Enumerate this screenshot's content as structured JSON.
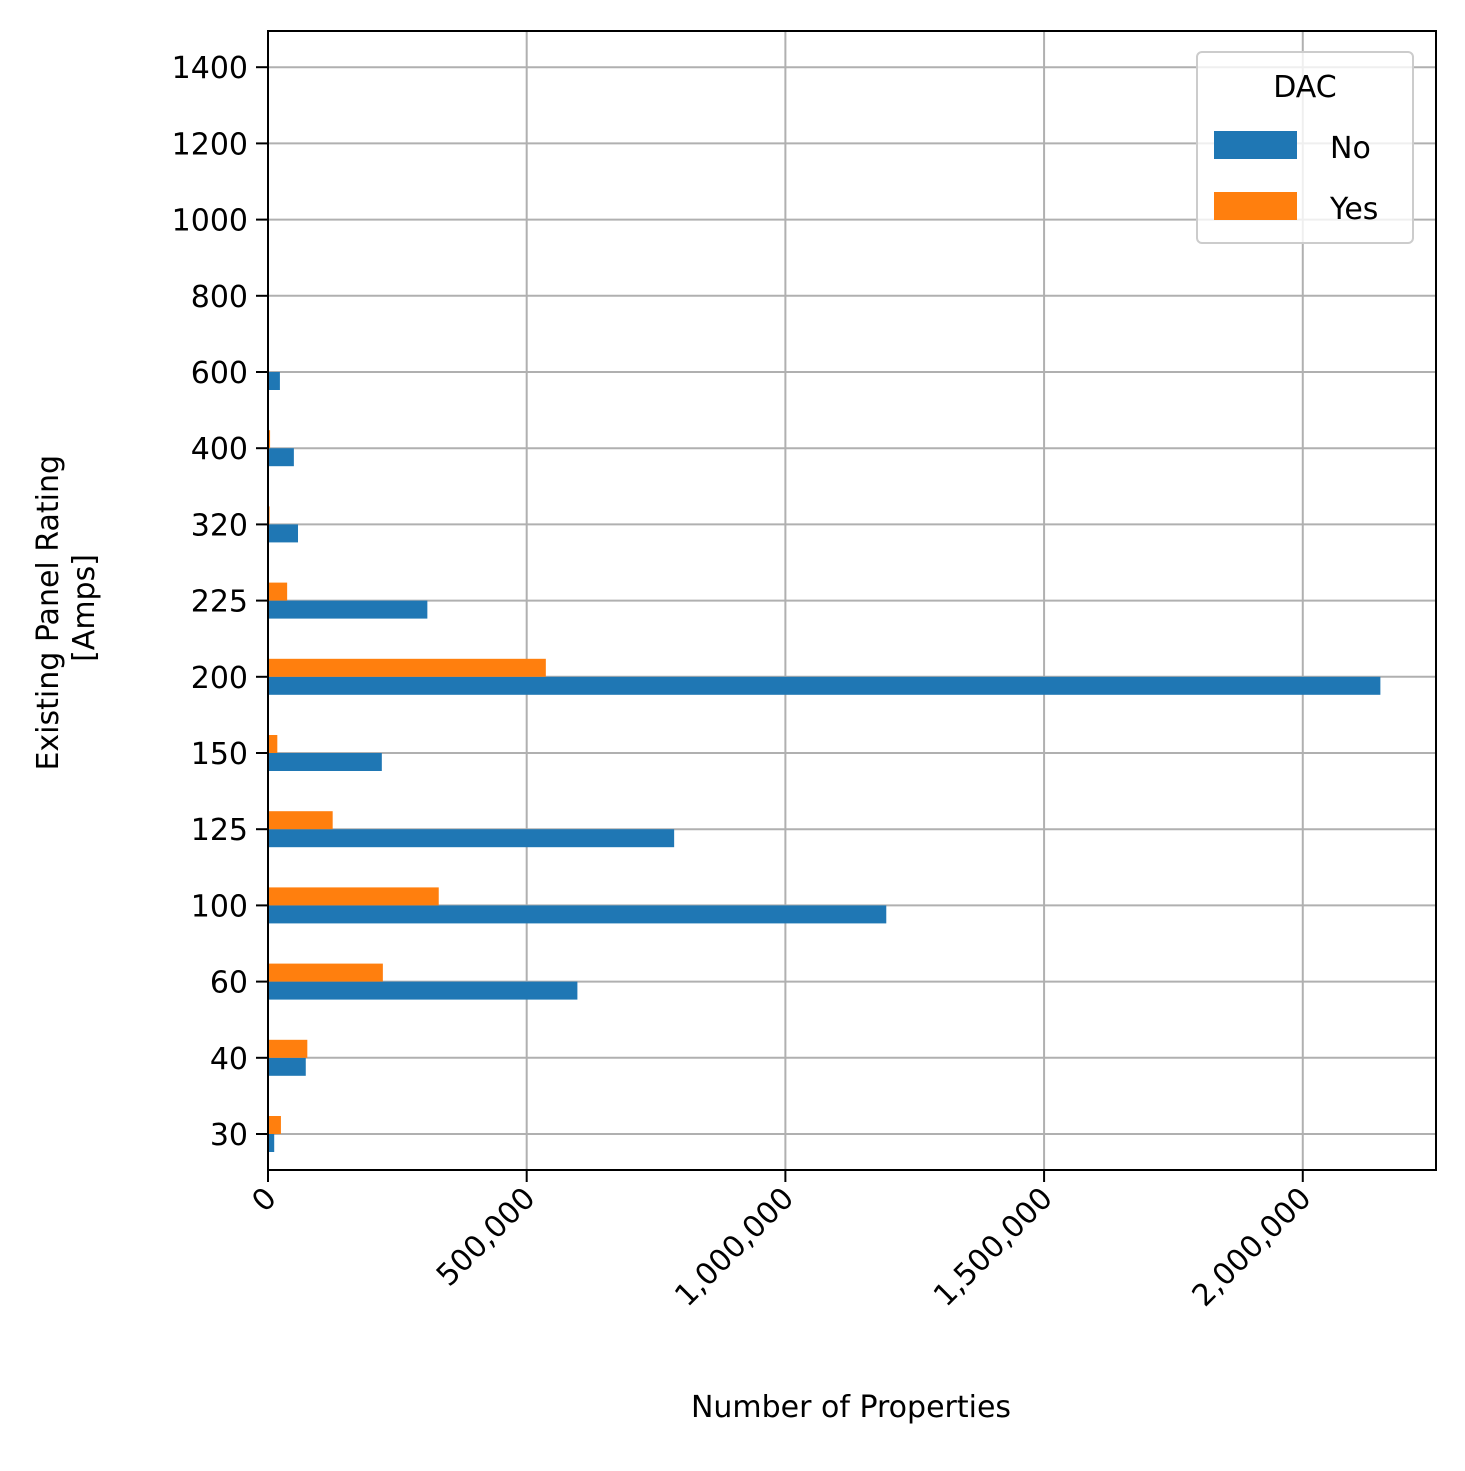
{
  "chart_data": {
    "type": "bar",
    "orientation": "horizontal",
    "categories": [
      "30",
      "40",
      "60",
      "100",
      "125",
      "150",
      "200",
      "225",
      "320",
      "400",
      "600",
      "800",
      "1000",
      "1200",
      "1400"
    ],
    "series": [
      {
        "name": "No",
        "color": "#1f77b4",
        "values": [
          12000,
          73000,
          598000,
          1195000,
          785000,
          220000,
          2150000,
          308000,
          58000,
          50000,
          23000,
          0,
          0,
          0,
          0
        ]
      },
      {
        "name": "Yes",
        "color": "#ff7f0e",
        "values": [
          25000,
          76000,
          222000,
          330000,
          125000,
          18000,
          537000,
          37000,
          3000,
          4000,
          1000,
          0,
          0,
          0,
          0
        ]
      }
    ],
    "xlabel": "Number of Properties",
    "ylabel_lines": [
      "Existing Panel Rating",
      "[Amps]"
    ],
    "xlim": [
      0,
      2257500
    ],
    "xticks": [
      0,
      500000,
      1000000,
      1500000,
      2000000
    ],
    "xtick_labels": [
      "0",
      "500,000",
      "1,000,000",
      "1,500,000",
      "2,000,000"
    ],
    "xtick_rotation_deg": 45,
    "grid": true,
    "legend": {
      "title": "DAC",
      "placement": "top-right"
    }
  }
}
